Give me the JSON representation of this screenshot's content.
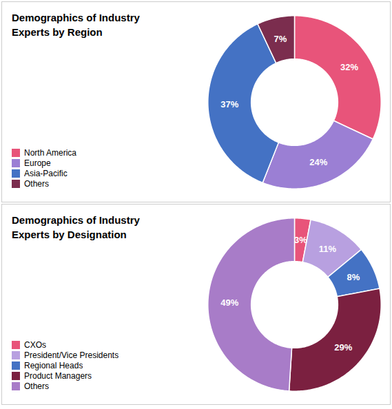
{
  "chart_data": [
    {
      "type": "pie",
      "title": "Demographics of Industry\nExperts by Region",
      "categories": [
        "North America",
        "Europe",
        "Asia-Pacific",
        "Others"
      ],
      "values": [
        32,
        24,
        37,
        7
      ],
      "value_labels": [
        "32%",
        "24%",
        "37%",
        "7%"
      ],
      "colors": [
        "#E8547A",
        "#9B7FD4",
        "#4472C4",
        "#7B2D4E"
      ],
      "data_labels": true,
      "legend": "lower left"
    },
    {
      "type": "pie",
      "title": "Demographics of Industry\nExperts by Designation",
      "categories": [
        "CXOs",
        "President/Vice Presidents",
        "Regional Heads",
        "Product Managers",
        "Others"
      ],
      "values": [
        3,
        11,
        8,
        29,
        49
      ],
      "value_labels": [
        "3%",
        "11%",
        "8%",
        "29%",
        "49%"
      ],
      "colors": [
        "#E8547A",
        "#B8A0E0",
        "#4472C4",
        "#7B2040",
        "#A87CC8"
      ],
      "data_labels": true,
      "legend": "lower left"
    }
  ]
}
